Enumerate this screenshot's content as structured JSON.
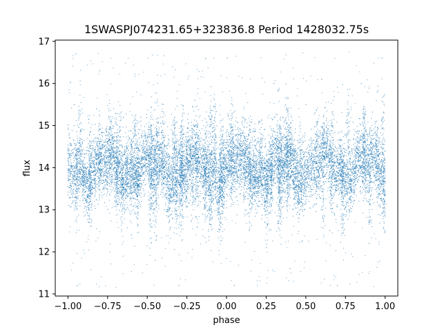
{
  "chart_data": {
    "type": "scatter",
    "title": "1SWASPJ074231.65+323836.8 Period 1428032.75s",
    "xlabel": "phase",
    "ylabel": "flux",
    "xlim": [
      -1.08,
      1.08
    ],
    "ylim": [
      10.95,
      17.03
    ],
    "xticks": [
      -1.0,
      -0.75,
      -0.5,
      -0.25,
      0.0,
      0.25,
      0.5,
      0.75,
      1.0
    ],
    "xtick_labels": [
      "−1.00",
      "−0.75",
      "−0.50",
      "−0.25",
      "0.00",
      "0.25",
      "0.50",
      "0.75",
      "1.00"
    ],
    "yticks": [
      11,
      12,
      13,
      14,
      15,
      16,
      17
    ],
    "ytick_labels": [
      "11",
      "12",
      "13",
      "14",
      "15",
      "16",
      "17"
    ],
    "grid": false,
    "marker_color": "#1f77b4",
    "series": [
      {
        "phase_range": [
          -1.0,
          1.0
        ],
        "flux_center": 14.0,
        "flux_core_band": [
          13.3,
          14.8
        ],
        "flux_extent": [
          11.15,
          16.75
        ],
        "points": [
          [
            -0.98,
            14.3
          ],
          [
            -0.96,
            15.5
          ],
          [
            -0.95,
            16.7
          ],
          [
            -0.94,
            11.2
          ],
          [
            -0.9,
            14.9
          ],
          [
            -0.85,
            13.1
          ],
          [
            -0.82,
            15.4
          ],
          [
            -0.8,
            16.3
          ],
          [
            -0.75,
            14.6
          ],
          [
            -0.7,
            13.5
          ],
          [
            -0.65,
            15.2
          ],
          [
            -0.6,
            12.4
          ],
          [
            -0.55,
            13.7
          ],
          [
            -0.5,
            14.5
          ],
          [
            -0.45,
            11.8
          ],
          [
            -0.4,
            15.5
          ],
          [
            -0.35,
            13.2
          ],
          [
            -0.3,
            11.2
          ],
          [
            -0.25,
            14.1
          ],
          [
            -0.2,
            15.6
          ],
          [
            -0.15,
            12.9
          ],
          [
            -0.1,
            14.2
          ],
          [
            -0.05,
            13.0
          ],
          [
            0.0,
            14.0
          ],
          [
            0.05,
            11.2
          ],
          [
            0.1,
            15.2
          ],
          [
            0.15,
            13.8
          ],
          [
            0.2,
            14.7
          ],
          [
            0.25,
            12.1
          ],
          [
            0.3,
            16.0
          ],
          [
            0.35,
            13.6
          ],
          [
            0.4,
            11.6
          ],
          [
            0.45,
            14.3
          ],
          [
            0.5,
            15.5
          ],
          [
            0.55,
            13.1
          ],
          [
            0.6,
            16.1
          ],
          [
            0.65,
            12.5
          ],
          [
            0.7,
            11.2
          ],
          [
            0.75,
            14.8
          ],
          [
            0.8,
            13.4
          ],
          [
            0.85,
            16.0
          ],
          [
            0.9,
            12.2
          ],
          [
            0.95,
            15.8
          ],
          [
            0.98,
            16.6
          ],
          [
            1.0,
            13.9
          ]
        ]
      }
    ]
  }
}
